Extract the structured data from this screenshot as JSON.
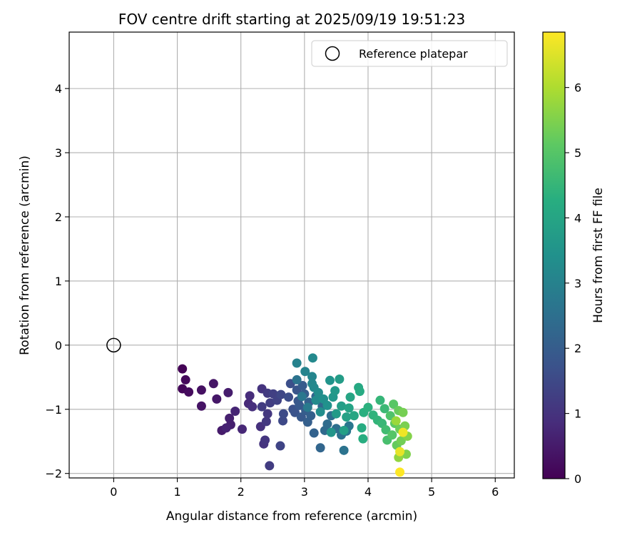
{
  "chart_data": {
    "type": "scatter",
    "title": "FOV centre drift starting at 2025/09/19 19:51:23",
    "xlabel": "Angular distance from reference (arcmin)",
    "ylabel": "Rotation from reference (arcmin)",
    "xlim": [
      -0.7,
      6.3
    ],
    "ylim": [
      -2.07,
      4.88
    ],
    "xticks": [
      0,
      1,
      2,
      3,
      4,
      5,
      6
    ],
    "yticks": [
      -2,
      -1,
      0,
      1,
      2,
      3,
      4
    ],
    "grid": true,
    "legend": {
      "position": "top-right",
      "entries": [
        "Reference platepar"
      ]
    },
    "reference_point": {
      "label": "Reference platepar",
      "x": 0,
      "y": 0,
      "marker": "open-circle"
    },
    "colorbar": {
      "label": "Hours from first FF file",
      "colormap": "viridis",
      "range": [
        0,
        6.85
      ],
      "ticks": [
        0,
        1,
        2,
        3,
        4,
        5,
        6
      ]
    },
    "series": [
      {
        "points": [
          {
            "x": 1.08,
            "y": -0.37,
            "h": 0.05
          },
          {
            "x": 1.08,
            "y": -0.68,
            "h": 0.1
          },
          {
            "x": 1.13,
            "y": -0.54,
            "h": 0.15
          },
          {
            "x": 1.18,
            "y": -0.73,
            "h": 0.2
          },
          {
            "x": 1.38,
            "y": -0.7,
            "h": 0.3
          },
          {
            "x": 1.38,
            "y": -0.95,
            "h": 0.35
          },
          {
            "x": 1.57,
            "y": -0.6,
            "h": 0.4
          },
          {
            "x": 1.62,
            "y": -0.84,
            "h": 0.45
          },
          {
            "x": 1.7,
            "y": -1.33,
            "h": 0.5
          },
          {
            "x": 1.8,
            "y": -0.74,
            "h": 0.55
          },
          {
            "x": 1.82,
            "y": -1.14,
            "h": 0.6
          },
          {
            "x": 1.84,
            "y": -1.24,
            "h": 0.6
          },
          {
            "x": 1.77,
            "y": -1.29,
            "h": 0.65
          },
          {
            "x": 1.91,
            "y": -1.03,
            "h": 0.7
          },
          {
            "x": 2.02,
            "y": -1.31,
            "h": 0.75
          },
          {
            "x": 2.12,
            "y": -0.91,
            "h": 0.8
          },
          {
            "x": 2.14,
            "y": -0.79,
            "h": 0.85
          },
          {
            "x": 2.18,
            "y": -0.96,
            "h": 0.9
          },
          {
            "x": 2.31,
            "y": -1.27,
            "h": 0.95
          },
          {
            "x": 2.33,
            "y": -0.68,
            "h": 1.0
          },
          {
            "x": 2.36,
            "y": -1.54,
            "h": 1.0
          },
          {
            "x": 2.38,
            "y": -1.48,
            "h": 1.05
          },
          {
            "x": 2.4,
            "y": -1.19,
            "h": 1.1
          },
          {
            "x": 2.42,
            "y": -1.07,
            "h": 1.1
          },
          {
            "x": 2.42,
            "y": -0.75,
            "h": 1.15
          },
          {
            "x": 2.45,
            "y": -1.88,
            "h": 1.2
          },
          {
            "x": 2.33,
            "y": -0.96,
            "h": 1.2
          },
          {
            "x": 2.46,
            "y": -0.9,
            "h": 1.25
          },
          {
            "x": 2.51,
            "y": -0.76,
            "h": 1.3
          },
          {
            "x": 2.57,
            "y": -0.86,
            "h": 1.35
          },
          {
            "x": 2.62,
            "y": -1.57,
            "h": 1.4
          },
          {
            "x": 2.63,
            "y": -0.77,
            "h": 1.45
          },
          {
            "x": 2.66,
            "y": -1.18,
            "h": 1.5
          },
          {
            "x": 2.67,
            "y": -1.07,
            "h": 1.55
          },
          {
            "x": 2.75,
            "y": -0.81,
            "h": 1.6
          },
          {
            "x": 2.78,
            "y": -0.6,
            "h": 1.65
          },
          {
            "x": 2.82,
            "y": -1.0,
            "h": 1.7
          },
          {
            "x": 2.85,
            "y": -1.05,
            "h": 1.75
          },
          {
            "x": 2.88,
            "y": -0.7,
            "h": 1.8
          },
          {
            "x": 2.9,
            "y": -0.87,
            "h": 1.85
          },
          {
            "x": 2.92,
            "y": -0.94,
            "h": 1.9
          },
          {
            "x": 2.95,
            "y": -1.12,
            "h": 1.9
          },
          {
            "x": 2.97,
            "y": -0.63,
            "h": 1.95
          },
          {
            "x": 3.0,
            "y": -0.76,
            "h": 2.0
          },
          {
            "x": 3.02,
            "y": -1.02,
            "h": 2.0
          },
          {
            "x": 3.05,
            "y": -1.2,
            "h": 2.05
          },
          {
            "x": 3.07,
            "y": -0.89,
            "h": 2.1
          },
          {
            "x": 3.1,
            "y": -1.1,
            "h": 2.1
          },
          {
            "x": 3.15,
            "y": -1.37,
            "h": 2.15
          },
          {
            "x": 3.18,
            "y": -0.8,
            "h": 2.2
          },
          {
            "x": 3.25,
            "y": -1.6,
            "h": 2.25
          },
          {
            "x": 3.28,
            "y": -0.95,
            "h": 2.3
          },
          {
            "x": 3.32,
            "y": -1.33,
            "h": 2.35
          },
          {
            "x": 3.36,
            "y": -1.23,
            "h": 2.4
          },
          {
            "x": 3.42,
            "y": -1.1,
            "h": 2.45
          },
          {
            "x": 3.5,
            "y": -1.3,
            "h": 2.5
          },
          {
            "x": 3.58,
            "y": -1.4,
            "h": 2.55
          },
          {
            "x": 3.62,
            "y": -1.64,
            "h": 2.6
          },
          {
            "x": 3.66,
            "y": -1.34,
            "h": 2.65
          },
          {
            "x": 3.7,
            "y": -1.26,
            "h": 2.7
          },
          {
            "x": 2.88,
            "y": -0.54,
            "h": 2.6
          },
          {
            "x": 2.96,
            "y": -0.8,
            "h": 2.7
          },
          {
            "x": 3.05,
            "y": -0.97,
            "h": 2.8
          },
          {
            "x": 2.88,
            "y": -0.28,
            "h": 3.0
          },
          {
            "x": 3.01,
            "y": -0.41,
            "h": 3.05
          },
          {
            "x": 3.12,
            "y": -0.49,
            "h": 3.1
          },
          {
            "x": 3.12,
            "y": -0.6,
            "h": 3.15
          },
          {
            "x": 3.15,
            "y": -0.66,
            "h": 3.2
          },
          {
            "x": 3.13,
            "y": -0.2,
            "h": 3.2
          },
          {
            "x": 3.18,
            "y": -0.86,
            "h": 3.25
          },
          {
            "x": 3.22,
            "y": -0.74,
            "h": 3.3
          },
          {
            "x": 3.25,
            "y": -1.04,
            "h": 3.35
          },
          {
            "x": 3.3,
            "y": -0.84,
            "h": 3.4
          },
          {
            "x": 3.36,
            "y": -0.94,
            "h": 3.45
          },
          {
            "x": 3.4,
            "y": -0.55,
            "h": 3.5
          },
          {
            "x": 3.42,
            "y": -1.36,
            "h": 3.55
          },
          {
            "x": 3.45,
            "y": -0.81,
            "h": 3.6
          },
          {
            "x": 3.48,
            "y": -0.71,
            "h": 3.65
          },
          {
            "x": 3.5,
            "y": -1.07,
            "h": 3.7
          },
          {
            "x": 3.55,
            "y": -0.53,
            "h": 3.75
          },
          {
            "x": 3.58,
            "y": -0.95,
            "h": 3.8
          },
          {
            "x": 3.62,
            "y": -1.33,
            "h": 3.85
          },
          {
            "x": 3.66,
            "y": -1.12,
            "h": 3.9
          },
          {
            "x": 3.7,
            "y": -0.98,
            "h": 3.95
          },
          {
            "x": 3.72,
            "y": -0.81,
            "h": 4.0
          },
          {
            "x": 3.78,
            "y": -1.1,
            "h": 4.05
          },
          {
            "x": 3.85,
            "y": -0.66,
            "h": 4.1
          },
          {
            "x": 3.87,
            "y": -0.72,
            "h": 4.15
          },
          {
            "x": 3.9,
            "y": -1.29,
            "h": 4.2
          },
          {
            "x": 3.92,
            "y": -1.46,
            "h": 4.25
          },
          {
            "x": 3.93,
            "y": -1.05,
            "h": 4.3
          },
          {
            "x": 4.0,
            "y": -0.97,
            "h": 4.35
          },
          {
            "x": 4.08,
            "y": -1.09,
            "h": 4.4
          },
          {
            "x": 4.15,
            "y": -1.17,
            "h": 4.45
          },
          {
            "x": 4.19,
            "y": -0.86,
            "h": 4.5
          },
          {
            "x": 4.22,
            "y": -1.22,
            "h": 4.55
          },
          {
            "x": 4.26,
            "y": -0.99,
            "h": 4.6
          },
          {
            "x": 4.28,
            "y": -1.32,
            "h": 4.7
          },
          {
            "x": 4.3,
            "y": -1.48,
            "h": 4.8
          },
          {
            "x": 4.35,
            "y": -1.1,
            "h": 4.9
          },
          {
            "x": 4.38,
            "y": -1.4,
            "h": 5.0
          },
          {
            "x": 4.4,
            "y": -0.92,
            "h": 5.05
          },
          {
            "x": 4.42,
            "y": -1.22,
            "h": 5.1
          },
          {
            "x": 4.45,
            "y": -1.56,
            "h": 5.2
          },
          {
            "x": 4.48,
            "y": -1.02,
            "h": 5.25
          },
          {
            "x": 4.5,
            "y": -1.31,
            "h": 5.3
          },
          {
            "x": 4.52,
            "y": -1.49,
            "h": 5.35
          },
          {
            "x": 4.55,
            "y": -1.05,
            "h": 5.4
          },
          {
            "x": 4.58,
            "y": -1.26,
            "h": 5.45
          },
          {
            "x": 4.6,
            "y": -1.7,
            "h": 5.5
          },
          {
            "x": 4.62,
            "y": -1.42,
            "h": 5.55
          },
          {
            "x": 4.48,
            "y": -1.75,
            "h": 5.7
          },
          {
            "x": 4.44,
            "y": -1.18,
            "h": 5.8
          },
          {
            "x": 4.5,
            "y": -1.66,
            "h": 6.6
          },
          {
            "x": 4.55,
            "y": -1.36,
            "h": 6.7
          },
          {
            "x": 4.5,
            "y": -1.98,
            "h": 6.85
          }
        ]
      }
    ]
  }
}
